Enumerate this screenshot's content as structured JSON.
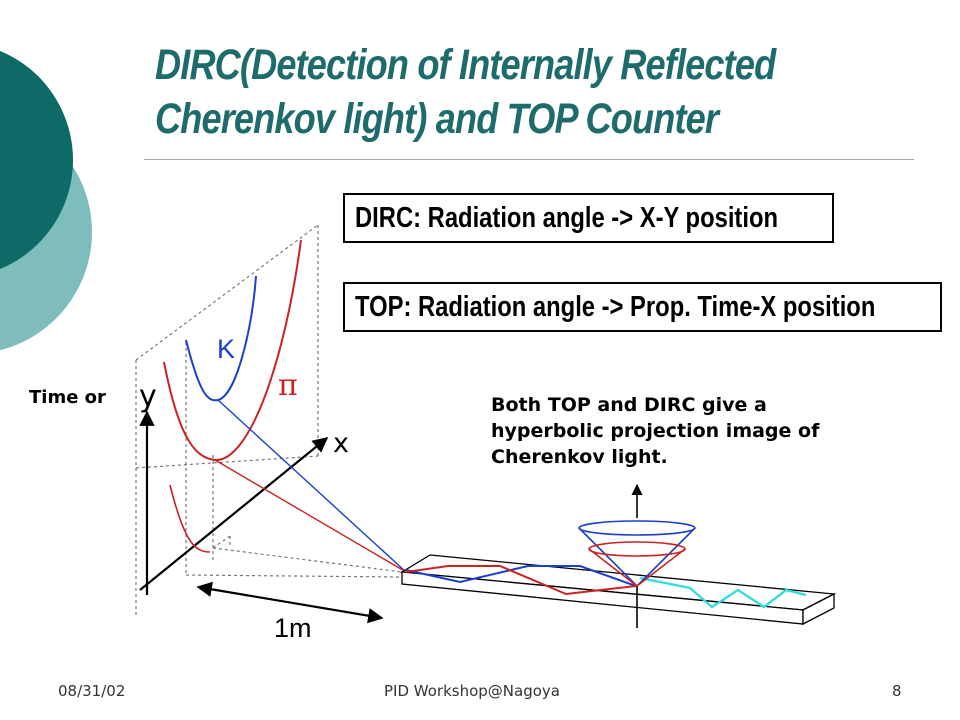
{
  "title": {
    "line1": "DIRC(Detection of Internally Reflected",
    "line2": "Cherenkov light) and TOP Counter"
  },
  "boxes": {
    "dirc": "DIRC: Radiation angle -> X-Y position",
    "top": "TOP: Radiation angle -> Prop. Time-X position"
  },
  "description": {
    "line1": "Both TOP and DIRC give a",
    "line2": "hyperbolic projection image of",
    "line3": "Cherenkov light."
  },
  "diagram": {
    "axis_prefix": "Time or ",
    "axis_y": "y",
    "axis_x": "x",
    "kaon_label": "K",
    "pion_label": "π",
    "distance_label": "1m"
  },
  "footer": {
    "date": "08/31/02",
    "center": "PID Workshop@Nagoya",
    "page": "8"
  },
  "colors": {
    "title": "#1e6b6b",
    "deco_dark": "#0e6a66",
    "deco_light": "#7fbcbc",
    "kaon": "#1a3fcc",
    "pion": "#cc2222",
    "cyan": "#33dddd"
  }
}
